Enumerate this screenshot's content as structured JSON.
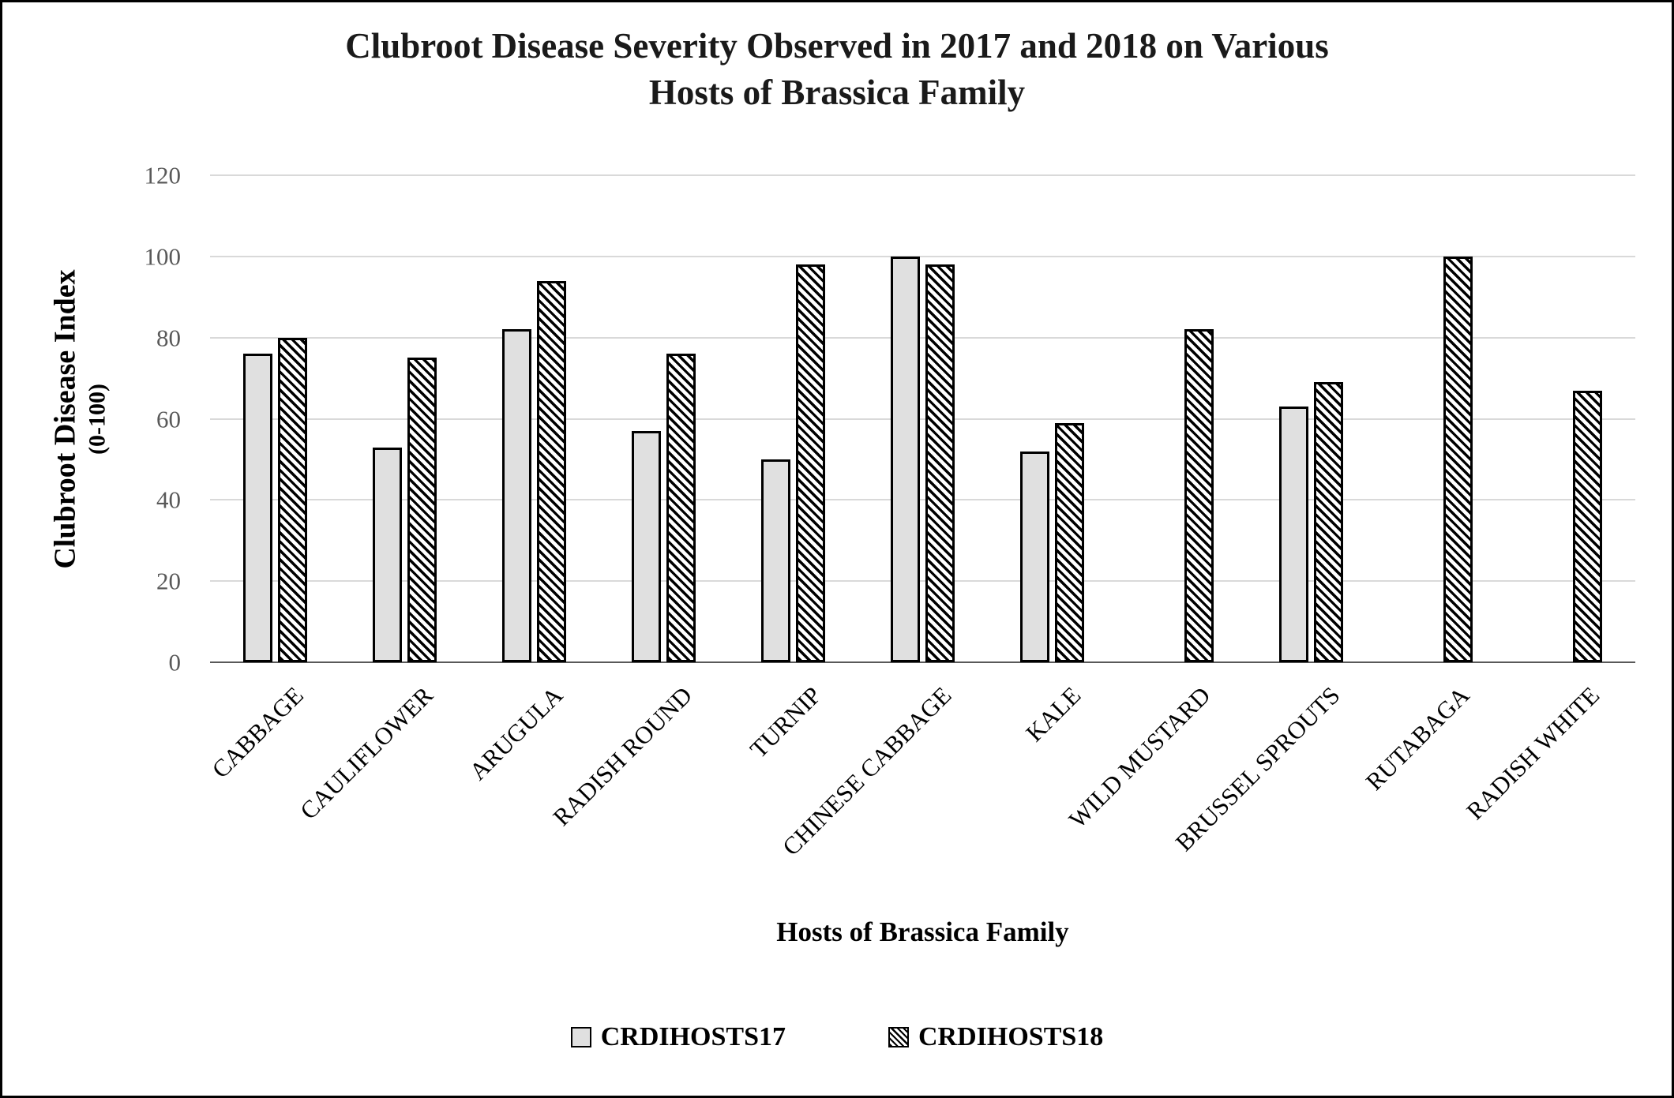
{
  "title": {
    "line1": "Clubroot Disease Severity Observed in 2017 and 2018 on Various",
    "line2": "Hosts of Brassica Family"
  },
  "y_axis": {
    "title": "Clubroot Disease Index",
    "subtitle": "(0-100)"
  },
  "x_axis": {
    "title": "Hosts of Brassica Family"
  },
  "colors": {
    "bar_2017_fill": "#e0e0e0",
    "bar_border": "#000000",
    "hatch_stripe": "#000000",
    "gridline": "#d9d9d9",
    "axis_line": "#595959",
    "tick_label": "#595959"
  },
  "chart_data": {
    "type": "bar",
    "title": "Clubroot Disease Severity Observed in 2017 and 2018 on Various Hosts of Brassica Family",
    "xlabel": "Hosts of Brassica Family",
    "ylabel": "Clubroot Disease Index (0-100)",
    "categories": [
      "CABBAGE",
      "CAULIFLOWER",
      "ARUGULA",
      "RADISH ROUND",
      "TURNIP",
      "CHINESE CABBAGE",
      "KALE",
      "WILD MUSTARD",
      "BRUSSEL SPROUTS",
      "RUTABAGA",
      "RADISH WHITE"
    ],
    "series": [
      {
        "name": "CRDIHOSTS17",
        "swatch": "solid-gray",
        "values": [
          76,
          53,
          82,
          57,
          50,
          100,
          52,
          0,
          63,
          0,
          0
        ]
      },
      {
        "name": "CRDIHOSTS18",
        "swatch": "diagonal-hatch",
        "values": [
          80,
          75,
          94,
          76,
          98,
          98,
          59,
          82,
          69,
          100,
          67
        ]
      }
    ],
    "ylim": [
      0,
      120
    ],
    "ytick_step": 20,
    "yticks": [
      0,
      20,
      40,
      60,
      80,
      100,
      120
    ],
    "grid": true,
    "legend_position": "bottom"
  }
}
